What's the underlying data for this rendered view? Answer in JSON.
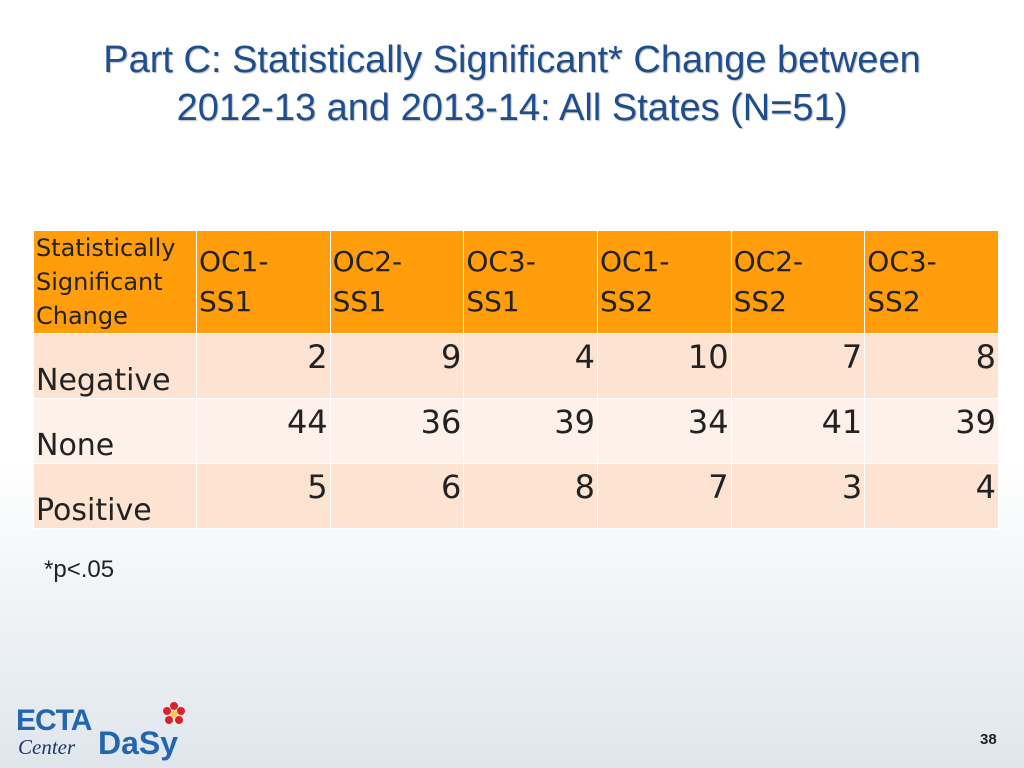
{
  "title": {
    "line1": "Part C: Statistically Significant* Change between",
    "line2": "2012-13 and 2013-14: All States (N=51)"
  },
  "table": {
    "corner_header": [
      "Statistically",
      "Significant",
      "Change"
    ],
    "columns": [
      [
        "OC1-",
        "SS1"
      ],
      [
        "OC2-",
        "SS1"
      ],
      [
        "OC3-",
        "SS1"
      ],
      [
        "OC1-",
        "SS2"
      ],
      [
        "OC2-",
        "SS2"
      ],
      [
        "OC3-",
        "SS2"
      ]
    ],
    "rows": [
      {
        "label": "Negative",
        "values": [
          "2",
          "9",
          "4",
          "10",
          "7",
          "8"
        ]
      },
      {
        "label": "None",
        "values": [
          "44",
          "36",
          "39",
          "34",
          "41",
          "39"
        ]
      },
      {
        "label": "Positive",
        "values": [
          "5",
          "6",
          "8",
          "7",
          "3",
          "4"
        ]
      }
    ]
  },
  "footnote": "*p<.05",
  "logo": {
    "ecta_top": "ECTA",
    "ecta_bottom": "Center",
    "dasy": "DaSy"
  },
  "page_number": "38",
  "colors": {
    "title": "#1f4e8c",
    "header_bg": "#ff9d0a",
    "row_odd": "#fde3d1",
    "row_even": "#fdf1ea",
    "logo_blue": "#2266b0",
    "logo_navy": "#1b3a6b",
    "flower_red": "#d8232a"
  }
}
